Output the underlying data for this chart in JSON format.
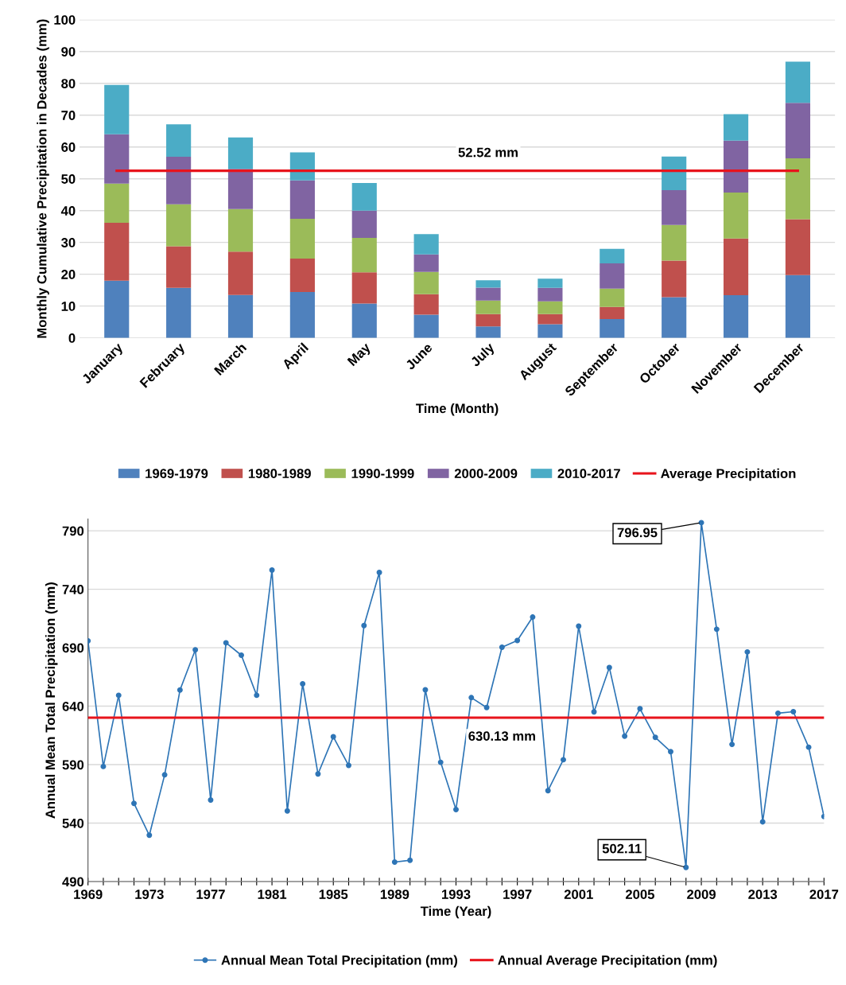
{
  "chart_data": [
    {
      "type": "bar",
      "stacked": true,
      "xlabel": "Time (Month)",
      "ylabel": "Monthly Cumulative Precipitation in Decades (mm)",
      "categories": [
        "January",
        "February",
        "March",
        "April",
        "May",
        "June",
        "July",
        "August",
        "September",
        "October",
        "November",
        "December"
      ],
      "series": [
        {
          "name": "1969-1979",
          "color": "#4f81bd",
          "values": [
            18.0,
            15.7,
            13.5,
            14.4,
            10.8,
            7.3,
            3.6,
            4.3,
            5.9,
            12.8,
            13.4,
            19.7
          ]
        },
        {
          "name": "1980-1989",
          "color": "#c0504d",
          "values": [
            18.2,
            13.1,
            13.6,
            10.5,
            9.8,
            6.4,
            3.9,
            3.2,
            3.8,
            11.5,
            17.8,
            17.6
          ]
        },
        {
          "name": "1990-1999",
          "color": "#9bbb59",
          "values": [
            12.3,
            13.2,
            13.4,
            12.5,
            10.8,
            7.0,
            4.2,
            4.0,
            5.8,
            11.2,
            14.5,
            19.1
          ]
        },
        {
          "name": "2000-2009",
          "color": "#8064a2",
          "values": [
            15.5,
            14.9,
            12.6,
            12.1,
            8.6,
            5.5,
            4.1,
            4.2,
            7.9,
            10.9,
            16.3,
            17.5
          ]
        },
        {
          "name": "2010-2017",
          "color": "#4bacc6",
          "values": [
            15.5,
            10.2,
            9.9,
            8.8,
            8.7,
            6.4,
            2.3,
            2.9,
            4.6,
            10.6,
            8.3,
            12.9
          ]
        },
        {
          "name": "Average Precipitation",
          "type": "line",
          "color": "#e8141c",
          "values": [
            52.52,
            52.52,
            52.52,
            52.52,
            52.52,
            52.52,
            52.52,
            52.52,
            52.52,
            52.52,
            52.52,
            52.52
          ]
        }
      ],
      "annotations": [
        {
          "text": "52.52 mm",
          "x": "July",
          "y": 52.52
        }
      ],
      "ylim": [
        0,
        100
      ],
      "yticks": [
        0,
        10,
        20,
        30,
        40,
        50,
        60,
        70,
        80,
        90,
        100
      ],
      "grid": "y",
      "legend": "bottom"
    },
    {
      "type": "line",
      "xlabel": "Time (Year)",
      "ylabel": "Annual Mean Total Precipitation (mm)",
      "marker": "circle",
      "series": [
        {
          "name": "Annual Mean Total Precipitation (mm)",
          "color": "#2e75b6",
          "x": [
            1969,
            1970,
            1971,
            1972,
            1973,
            1974,
            1975,
            1976,
            1977,
            1978,
            1979,
            1980,
            1981,
            1982,
            1983,
            1984,
            1985,
            1986,
            1987,
            1988,
            1989,
            1990,
            1991,
            1992,
            1993,
            1994,
            1995,
            1996,
            1997,
            1998,
            1999,
            2000,
            2001,
            2002,
            2003,
            2004,
            2005,
            2006,
            2007,
            2008,
            2009,
            2010,
            2011,
            2012,
            2013,
            2014,
            2015,
            2016,
            2017
          ],
          "values": [
            695.8,
            588.4,
            649.3,
            556.9,
            529.6,
            581.3,
            653.8,
            688.2,
            559.8,
            694.2,
            683.6,
            649.3,
            756.4,
            550.4,
            659.1,
            582.0,
            613.8,
            589.3,
            708.9,
            754.4,
            506.7,
            508.2,
            654.0,
            592.0,
            551.6,
            647.3,
            638.9,
            690.4,
            696.2,
            716.2,
            567.8,
            594.2,
            708.4,
            635.1,
            673.1,
            614.4,
            637.8,
            613.3,
            601.1,
            502.11,
            796.95,
            705.8,
            607.3,
            686.4,
            541.1,
            634.0,
            635.3,
            604.9,
            545.6
          ]
        },
        {
          "name": "Annual Average Precipitation (mm)",
          "color": "#e8141c",
          "marker": "none",
          "x": [
            1969,
            2017
          ],
          "values": [
            630.13,
            630.13
          ]
        }
      ],
      "annotations": [
        {
          "text": "796.95",
          "x": 2009,
          "y": 796.95
        },
        {
          "text": "502.11",
          "x": 2008,
          "y": 502.11
        },
        {
          "text": "630.13 mm",
          "x": 1996,
          "y": 630.13
        }
      ],
      "xlim": [
        1969,
        2017
      ],
      "xticks": [
        1969,
        {
          "value": 1970,
          "label": null
        },
        {
          "value": 1971,
          "label": null
        },
        {
          "value": 1972,
          "label": null
        },
        1973,
        {
          "value": 1974,
          "label": null
        },
        {
          "value": 1975,
          "label": null
        },
        {
          "value": 1976,
          "label": null
        },
        1977,
        {
          "value": 1978,
          "label": null
        },
        {
          "value": 1979,
          "label": null
        },
        {
          "value": 1980,
          "label": null
        },
        1981,
        {
          "value": 1982,
          "label": null
        },
        {
          "value": 1983,
          "label": null
        },
        {
          "value": 1984,
          "label": null
        },
        1985,
        {
          "value": 1986,
          "label": null
        },
        {
          "value": 1987,
          "label": null
        },
        {
          "value": 1988,
          "label": null
        },
        1989,
        {
          "value": 1990,
          "label": null
        },
        {
          "value": 1991,
          "label": null
        },
        {
          "value": 1992,
          "label": null
        },
        1993,
        {
          "value": 1994,
          "label": null
        },
        {
          "value": 1995,
          "label": null
        },
        {
          "value": 1996,
          "label": null
        },
        1997,
        {
          "value": 1998,
          "label": null
        },
        {
          "value": 1999,
          "label": null
        },
        {
          "value": 2000,
          "label": null
        },
        2001,
        {
          "value": 2002,
          "label": null
        },
        {
          "value": 2003,
          "label": null
        },
        {
          "value": 2004,
          "label": null
        },
        2005,
        {
          "value": 2006,
          "label": null
        },
        {
          "value": 2007,
          "label": null
        },
        {
          "value": 2008,
          "label": null
        },
        2009,
        {
          "value": 2010,
          "label": null
        },
        {
          "value": 2011,
          "label": null
        },
        {
          "value": 2012,
          "label": null
        },
        2013,
        {
          "value": 2014,
          "label": null
        },
        {
          "value": 2015,
          "label": null
        },
        {
          "value": 2016,
          "label": null
        },
        2017
      ],
      "ylim": [
        490,
        800
      ],
      "yticks": [
        490,
        540,
        590,
        640,
        690,
        740,
        790
      ],
      "grid": "y",
      "legend": "bottom"
    }
  ]
}
